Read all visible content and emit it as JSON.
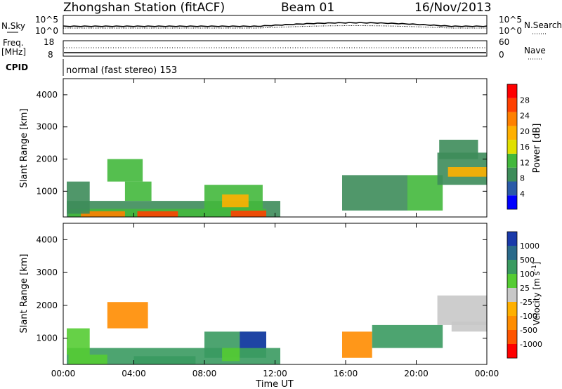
{
  "header": {
    "station": "Zhongshan Station (fitACF)",
    "beam": "Beam 01",
    "date": "16/Nov/2013"
  },
  "noise_panel": {
    "left_label": "N.Sky",
    "left_ticks": [
      "10^5",
      "10^0"
    ],
    "right_label": "N.Search",
    "right_ticks": [
      "10^5",
      "10^0"
    ]
  },
  "freq_panel": {
    "left_label_1": "Freq.",
    "left_label_2": "[MHz]",
    "left_ticks": [
      "18",
      "8"
    ],
    "right_label": "Nave",
    "right_ticks": [
      "60",
      "0"
    ]
  },
  "cpid": {
    "label": "CPID",
    "text": "normal (fast stereo) 153"
  },
  "colors": {
    "power": [
      "#0000ff",
      "#2a5aa8",
      "#3d8c5a",
      "#42b83c",
      "#e0e000",
      "#ffb000",
      "#ff8000",
      "#ff4000",
      "#ff0000"
    ],
    "velocity": [
      "#ff0000",
      "#ff5500",
      "#ff8c00",
      "#ffb000",
      "#c8c8c8",
      "#55cc33",
      "#3a9a60",
      "#2a6a8a",
      "#1a3aaa"
    ]
  },
  "chart_data": [
    {
      "type": "heatmap",
      "ylabel": "Slant Range [km]",
      "y_ticks": [
        "1000",
        "2000",
        "3000",
        "4000"
      ],
      "ylim": [
        200,
        4500
      ],
      "colorbar_label": "Power [dB]",
      "colorbar_ticks": [
        "4",
        "8",
        "12",
        "16",
        "20",
        "24",
        "28"
      ],
      "colorbar_range": [
        0,
        32
      ],
      "regions": [
        {
          "t0": 0.2,
          "t1": 12.3,
          "r0": 200,
          "r1": 700,
          "v": 10
        },
        {
          "t0": 0.3,
          "t1": 11.5,
          "r0": 200,
          "r1": 450,
          "v": 14
        },
        {
          "t0": 1.0,
          "t1": 3.5,
          "r0": 200,
          "r1": 380,
          "v": 22
        },
        {
          "t0": 4.2,
          "t1": 6.5,
          "r0": 200,
          "r1": 380,
          "v": 26
        },
        {
          "t0": 9.5,
          "t1": 11.5,
          "r0": 200,
          "r1": 400,
          "v": 28
        },
        {
          "t0": 0.2,
          "t1": 1.5,
          "r0": 300,
          "r1": 1300,
          "v": 8
        },
        {
          "t0": 2.5,
          "t1": 4.5,
          "r0": 1300,
          "r1": 2000,
          "v": 12
        },
        {
          "t0": 3.5,
          "t1": 5.0,
          "r0": 700,
          "r1": 1300,
          "v": 14
        },
        {
          "t0": 8.0,
          "t1": 11.3,
          "r0": 400,
          "r1": 1200,
          "v": 12
        },
        {
          "t0": 9.0,
          "t1": 10.5,
          "r0": 500,
          "r1": 900,
          "v": 18
        },
        {
          "t0": 15.8,
          "t1": 19.5,
          "r0": 400,
          "r1": 1500,
          "v": 10
        },
        {
          "t0": 19.5,
          "t1": 21.5,
          "r0": 400,
          "r1": 1500,
          "v": 12
        },
        {
          "t0": 21.2,
          "t1": 24.0,
          "r0": 1200,
          "r1": 2200,
          "v": 10
        },
        {
          "t0": 21.8,
          "t1": 24.0,
          "r0": 1450,
          "r1": 1750,
          "v": 18
        },
        {
          "t0": 21.3,
          "t1": 23.5,
          "r0": 2000,
          "r1": 2600,
          "v": 8
        }
      ]
    },
    {
      "type": "heatmap",
      "ylabel": "Slant Range [km]",
      "y_ticks": [
        "1000",
        "2000",
        "3000",
        "4000"
      ],
      "ylim": [
        200,
        4500
      ],
      "xlabel": "Time UT",
      "x_ticks": [
        "00:00",
        "04:00",
        "08:00",
        "12:00",
        "16:00",
        "20:00",
        "00:00"
      ],
      "xlim": [
        0,
        24
      ],
      "colorbar_label": "Velocity [m s^-1]",
      "colorbar_ticks": [
        "-1000",
        "-500",
        "-100",
        "-25",
        "25",
        "100",
        "500",
        "1000"
      ],
      "regions": [
        {
          "t0": 0.2,
          "t1": 12.3,
          "r0": 200,
          "r1": 700,
          "c": 6
        },
        {
          "t0": 0.3,
          "t1": 2.5,
          "r0": 200,
          "r1": 500,
          "c": 5
        },
        {
          "t0": 4.0,
          "t1": 7.5,
          "r0": 200,
          "r1": 450,
          "c": 6
        },
        {
          "t0": 2.5,
          "t1": 4.8,
          "r0": 1300,
          "r1": 2100,
          "c": 2
        },
        {
          "t0": 0.2,
          "t1": 1.5,
          "r0": 500,
          "r1": 1300,
          "c": 5
        },
        {
          "t0": 8.0,
          "t1": 11.5,
          "r0": 400,
          "r1": 1200,
          "c": 6
        },
        {
          "t0": 10.0,
          "t1": 11.5,
          "r0": 700,
          "r1": 1200,
          "c": 8
        },
        {
          "t0": 9.0,
          "t1": 10.0,
          "r0": 300,
          "r1": 700,
          "c": 5
        },
        {
          "t0": 15.8,
          "t1": 17.5,
          "r0": 400,
          "r1": 1200,
          "c": 2
        },
        {
          "t0": 17.5,
          "t1": 21.5,
          "r0": 700,
          "r1": 1400,
          "c": 6
        },
        {
          "t0": 21.2,
          "t1": 24.0,
          "r0": 1400,
          "r1": 2300,
          "c": 4
        },
        {
          "t0": 22.0,
          "t1": 24.0,
          "r0": 1200,
          "r1": 1500,
          "c": 4
        }
      ]
    }
  ]
}
